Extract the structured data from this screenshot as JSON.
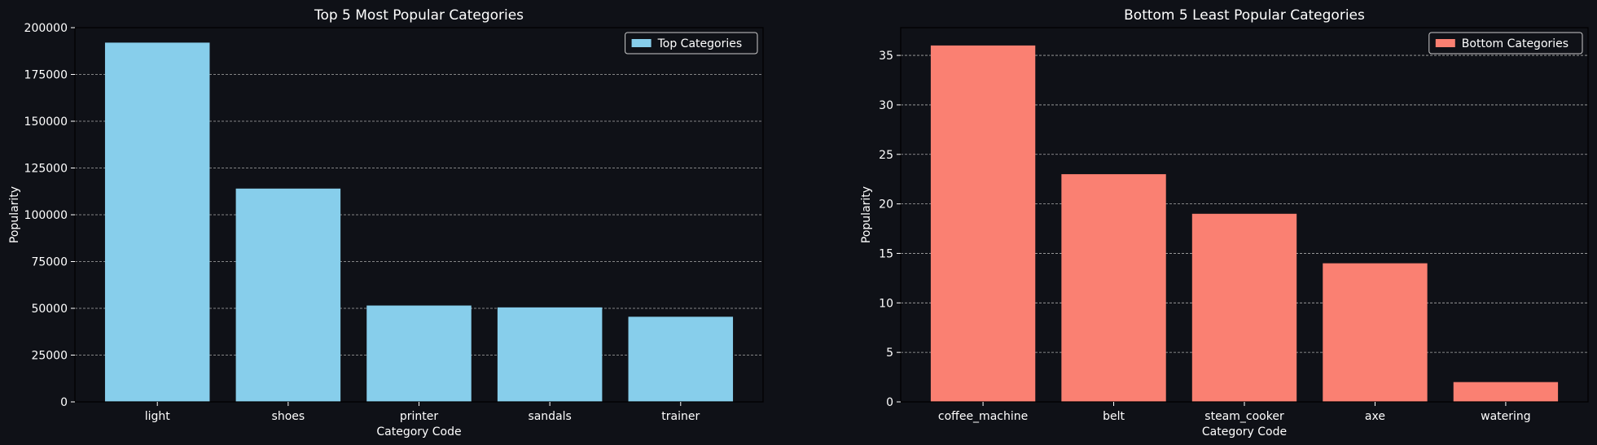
{
  "chart_data": [
    {
      "type": "bar",
      "title": "Top 5 Most Popular Categories",
      "xlabel": "Category Code",
      "ylabel": "Popularity",
      "categories": [
        "light",
        "shoes",
        "printer",
        "sandals",
        "trainer"
      ],
      "series": [
        {
          "name": "Top Categories",
          "values": [
            192000,
            114000,
            51500,
            50500,
            45500
          ]
        }
      ],
      "ylim": [
        0,
        200000
      ],
      "yticks": [
        0,
        25000,
        50000,
        75000,
        100000,
        125000,
        150000,
        175000,
        200000
      ],
      "grid": "y-dashed",
      "legend": "top-right",
      "bar_color": "#87ceeb"
    },
    {
      "type": "bar",
      "title": "Bottom 5 Least Popular Categories",
      "xlabel": "Category Code",
      "ylabel": "Popularity",
      "categories": [
        "coffee_machine",
        "belt",
        "steam_cooker",
        "axe",
        "watering"
      ],
      "series": [
        {
          "name": "Bottom Categories",
          "values": [
            36,
            23,
            19,
            14,
            2
          ]
        }
      ],
      "ylim": [
        0,
        37.8
      ],
      "yticks": [
        0,
        5,
        10,
        15,
        20,
        25,
        30,
        35
      ],
      "grid": "y-dashed",
      "legend": "top-right",
      "bar_color": "#fa8072"
    }
  ],
  "colors": {
    "background": "#0f1117",
    "axis": "#000000",
    "grid": "#aaaaaa",
    "text": "#ffffff"
  }
}
